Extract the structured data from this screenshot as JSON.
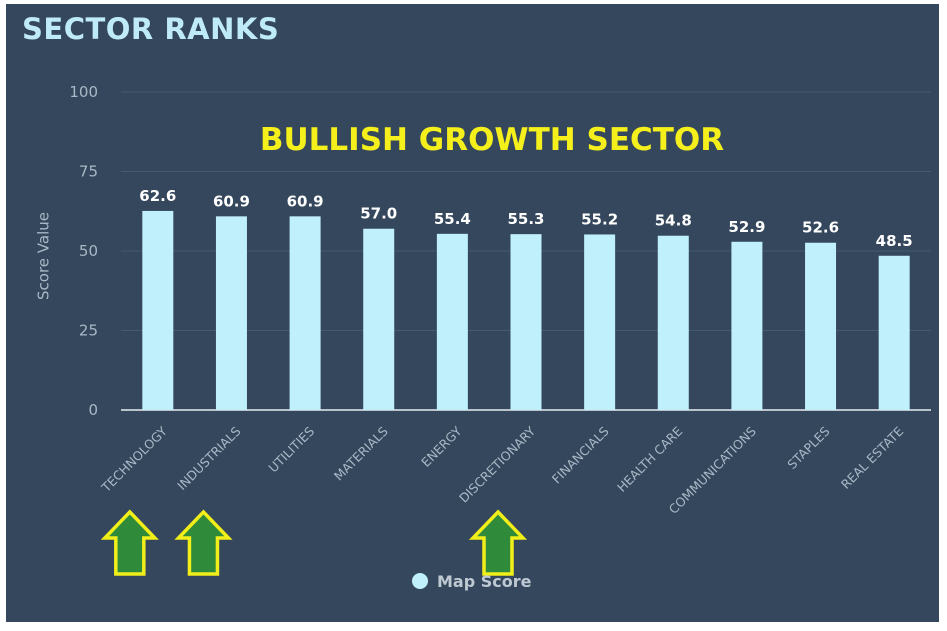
{
  "header": {
    "title": "SECTOR RANKS"
  },
  "chart_data": {
    "type": "bar",
    "annotation": "BULLISH GROWTH SECTOR",
    "ylabel": "Score Value",
    "xlabel": "",
    "ylim": [
      0,
      100
    ],
    "yticks": [
      0,
      25,
      50,
      75,
      100
    ],
    "categories": [
      "TECHNOLOGY",
      "INDUSTRIALS",
      "UTILITIES",
      "MATERIALS",
      "ENERGY",
      "DISCRETIONARY",
      "FINANCIALS",
      "HEALTH CARE",
      "COMMUNICATIONS",
      "STAPLES",
      "REAL ESTATE"
    ],
    "series": [
      {
        "name": "Map Score",
        "values": [
          62.6,
          60.9,
          60.9,
          57.0,
          55.4,
          55.3,
          55.2,
          54.8,
          52.9,
          52.6,
          48.5
        ]
      }
    ],
    "value_labels": [
      "62.6",
      "60.9",
      "60.9",
      "57.0",
      "55.4",
      "55.3",
      "55.2",
      "54.8",
      "52.9",
      "52.6",
      "48.5"
    ],
    "highlighted_categories": [
      "TECHNOLOGY",
      "INDUSTRIALS",
      "DISCRETIONARY"
    ],
    "legend": {
      "label": "Map Score",
      "placement": "bottom-center"
    },
    "colors": {
      "background": "#34475c",
      "bar": "#bff0fb",
      "gridline": "#435a70",
      "axis_text": "#a9b8c6",
      "value_label": "#ffffff",
      "annotation": "#f5ef1c",
      "arrow_fill": "#2f8a3a",
      "arrow_stroke": "#f2ee1a"
    }
  }
}
